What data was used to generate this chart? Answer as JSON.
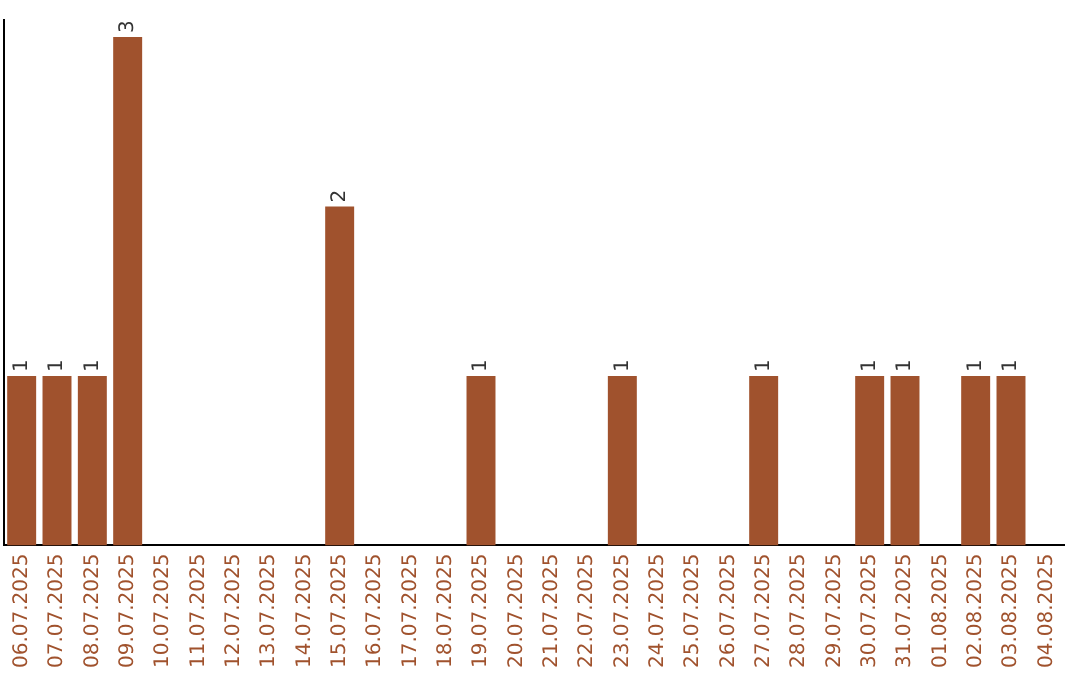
{
  "chart_data": {
    "type": "bar",
    "categories": [
      "06.07.2025",
      "07.07.2025",
      "08.07.2025",
      "09.07.2025",
      "10.07.2025",
      "11.07.2025",
      "12.07.2025",
      "13.07.2025",
      "14.07.2025",
      "15.07.2025",
      "16.07.2025",
      "17.07.2025",
      "18.07.2025",
      "19.07.2025",
      "20.07.2025",
      "21.07.2025",
      "22.07.2025",
      "23.07.2025",
      "24.07.2025",
      "25.07.2025",
      "26.07.2025",
      "27.07.2025",
      "28.07.2025",
      "29.07.2025",
      "30.07.2025",
      "31.07.2025",
      "01.08.2025",
      "02.08.2025",
      "03.08.2025",
      "04.08.2025"
    ],
    "values": [
      1,
      1,
      1,
      3,
      0,
      0,
      0,
      0,
      0,
      2,
      0,
      0,
      0,
      1,
      0,
      0,
      0,
      1,
      0,
      0,
      0,
      1,
      0,
      0,
      1,
      1,
      0,
      1,
      1,
      0
    ],
    "value_labels": [
      "1",
      "1",
      "1",
      "3",
      null,
      null,
      null,
      null,
      null,
      "2",
      null,
      null,
      null,
      "1",
      null,
      null,
      null,
      "1",
      null,
      null,
      null,
      "1",
      null,
      null,
      "1",
      "1",
      null,
      "1",
      "1",
      null
    ],
    "color": "#a0522d",
    "ylim": [
      0,
      3.1
    ],
    "tick_labels": "x",
    "grid": false,
    "legend": false
  }
}
